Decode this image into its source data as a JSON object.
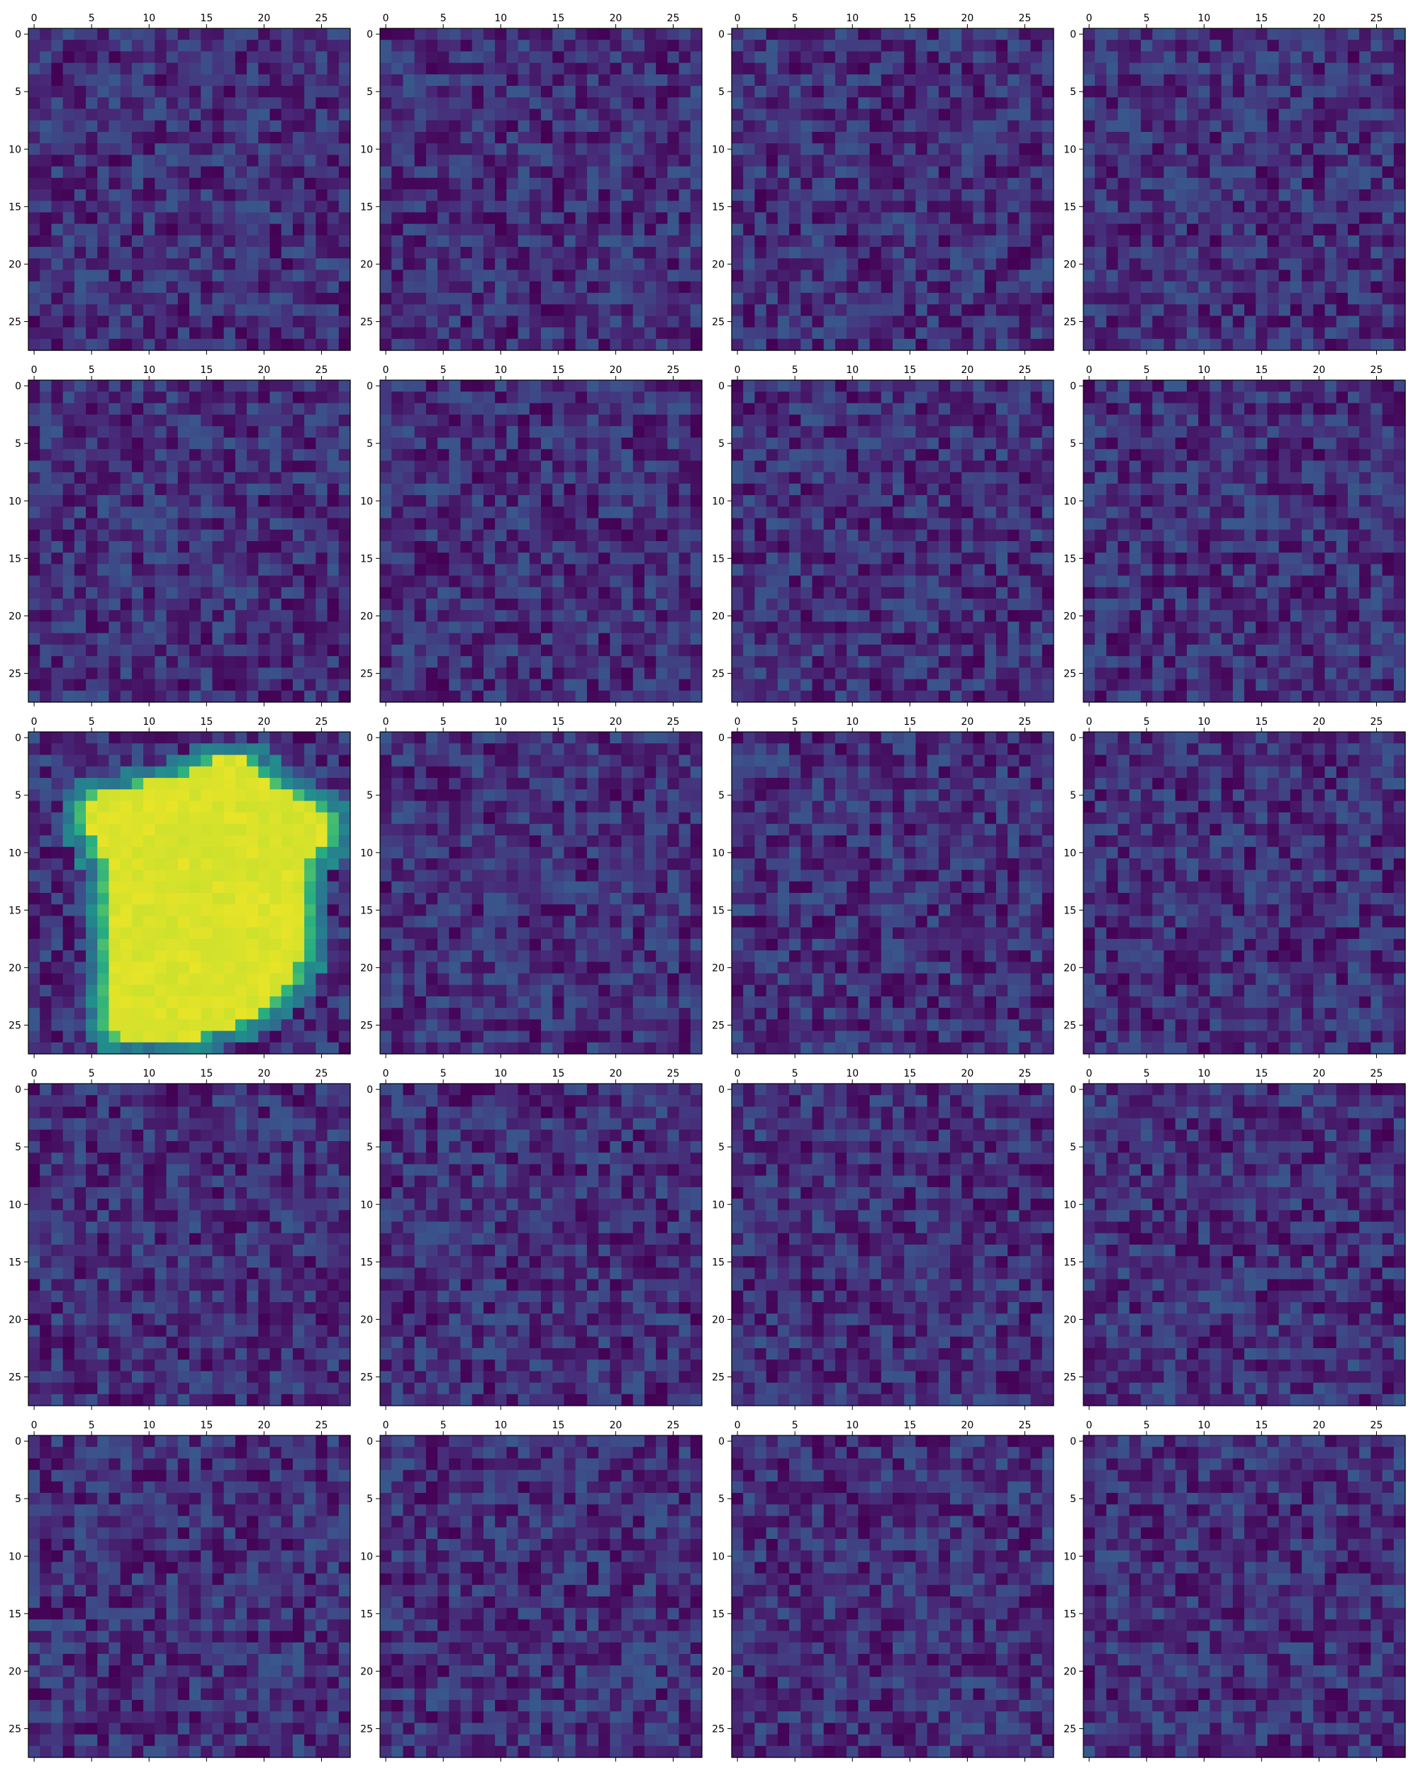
{
  "chart_data": {
    "type": "heatmap",
    "grid": {
      "rows": 5,
      "cols": 4,
      "count": 20
    },
    "matrix_size": [
      28,
      28
    ],
    "colormap": "viridis",
    "x_ticks": [
      0,
      5,
      10,
      15,
      20,
      25
    ],
    "y_ticks": [
      0,
      5,
      10,
      15,
      20,
      25
    ],
    "x_axis_position": "top",
    "grid_lines": false,
    "legend": "none",
    "noise_level": {
      "min": 0.0,
      "max": 0.28
    },
    "highlighted_panel": {
      "index": 8,
      "description_value": "bright blob",
      "blob_rows": [
        {
          "row": 2,
          "c0": 15,
          "c1": 19
        },
        {
          "row": 3,
          "c0": 13,
          "c1": 20
        },
        {
          "row": 4,
          "c0": 9,
          "c1": 21
        },
        {
          "row": 5,
          "c0": 5,
          "c1": 23
        },
        {
          "row": 6,
          "c0": 4,
          "c1": 25
        },
        {
          "row": 7,
          "c0": 4,
          "c1": 26
        },
        {
          "row": 8,
          "c0": 4,
          "c1": 26
        },
        {
          "row": 9,
          "c0": 5,
          "c1": 26
        },
        {
          "row": 10,
          "c0": 5,
          "c1": 25
        },
        {
          "row": 11,
          "c0": 6,
          "c1": 24
        },
        {
          "row": 12,
          "c0": 6,
          "c1": 24
        },
        {
          "row": 13,
          "c0": 6,
          "c1": 24
        },
        {
          "row": 14,
          "c0": 6,
          "c1": 24
        },
        {
          "row": 15,
          "c0": 6,
          "c1": 24
        },
        {
          "row": 16,
          "c0": 6,
          "c1": 24
        },
        {
          "row": 17,
          "c0": 6,
          "c1": 24
        },
        {
          "row": 18,
          "c0": 6,
          "c1": 24
        },
        {
          "row": 19,
          "c0": 6,
          "c1": 24
        },
        {
          "row": 20,
          "c0": 6,
          "c1": 23
        },
        {
          "row": 21,
          "c0": 6,
          "c1": 23
        },
        {
          "row": 22,
          "c0": 6,
          "c1": 22
        },
        {
          "row": 23,
          "c0": 6,
          "c1": 21
        },
        {
          "row": 24,
          "c0": 6,
          "c1": 20
        },
        {
          "row": 25,
          "c0": 6,
          "c1": 18
        },
        {
          "row": 26,
          "c0": 7,
          "c1": 15
        }
      ]
    }
  }
}
